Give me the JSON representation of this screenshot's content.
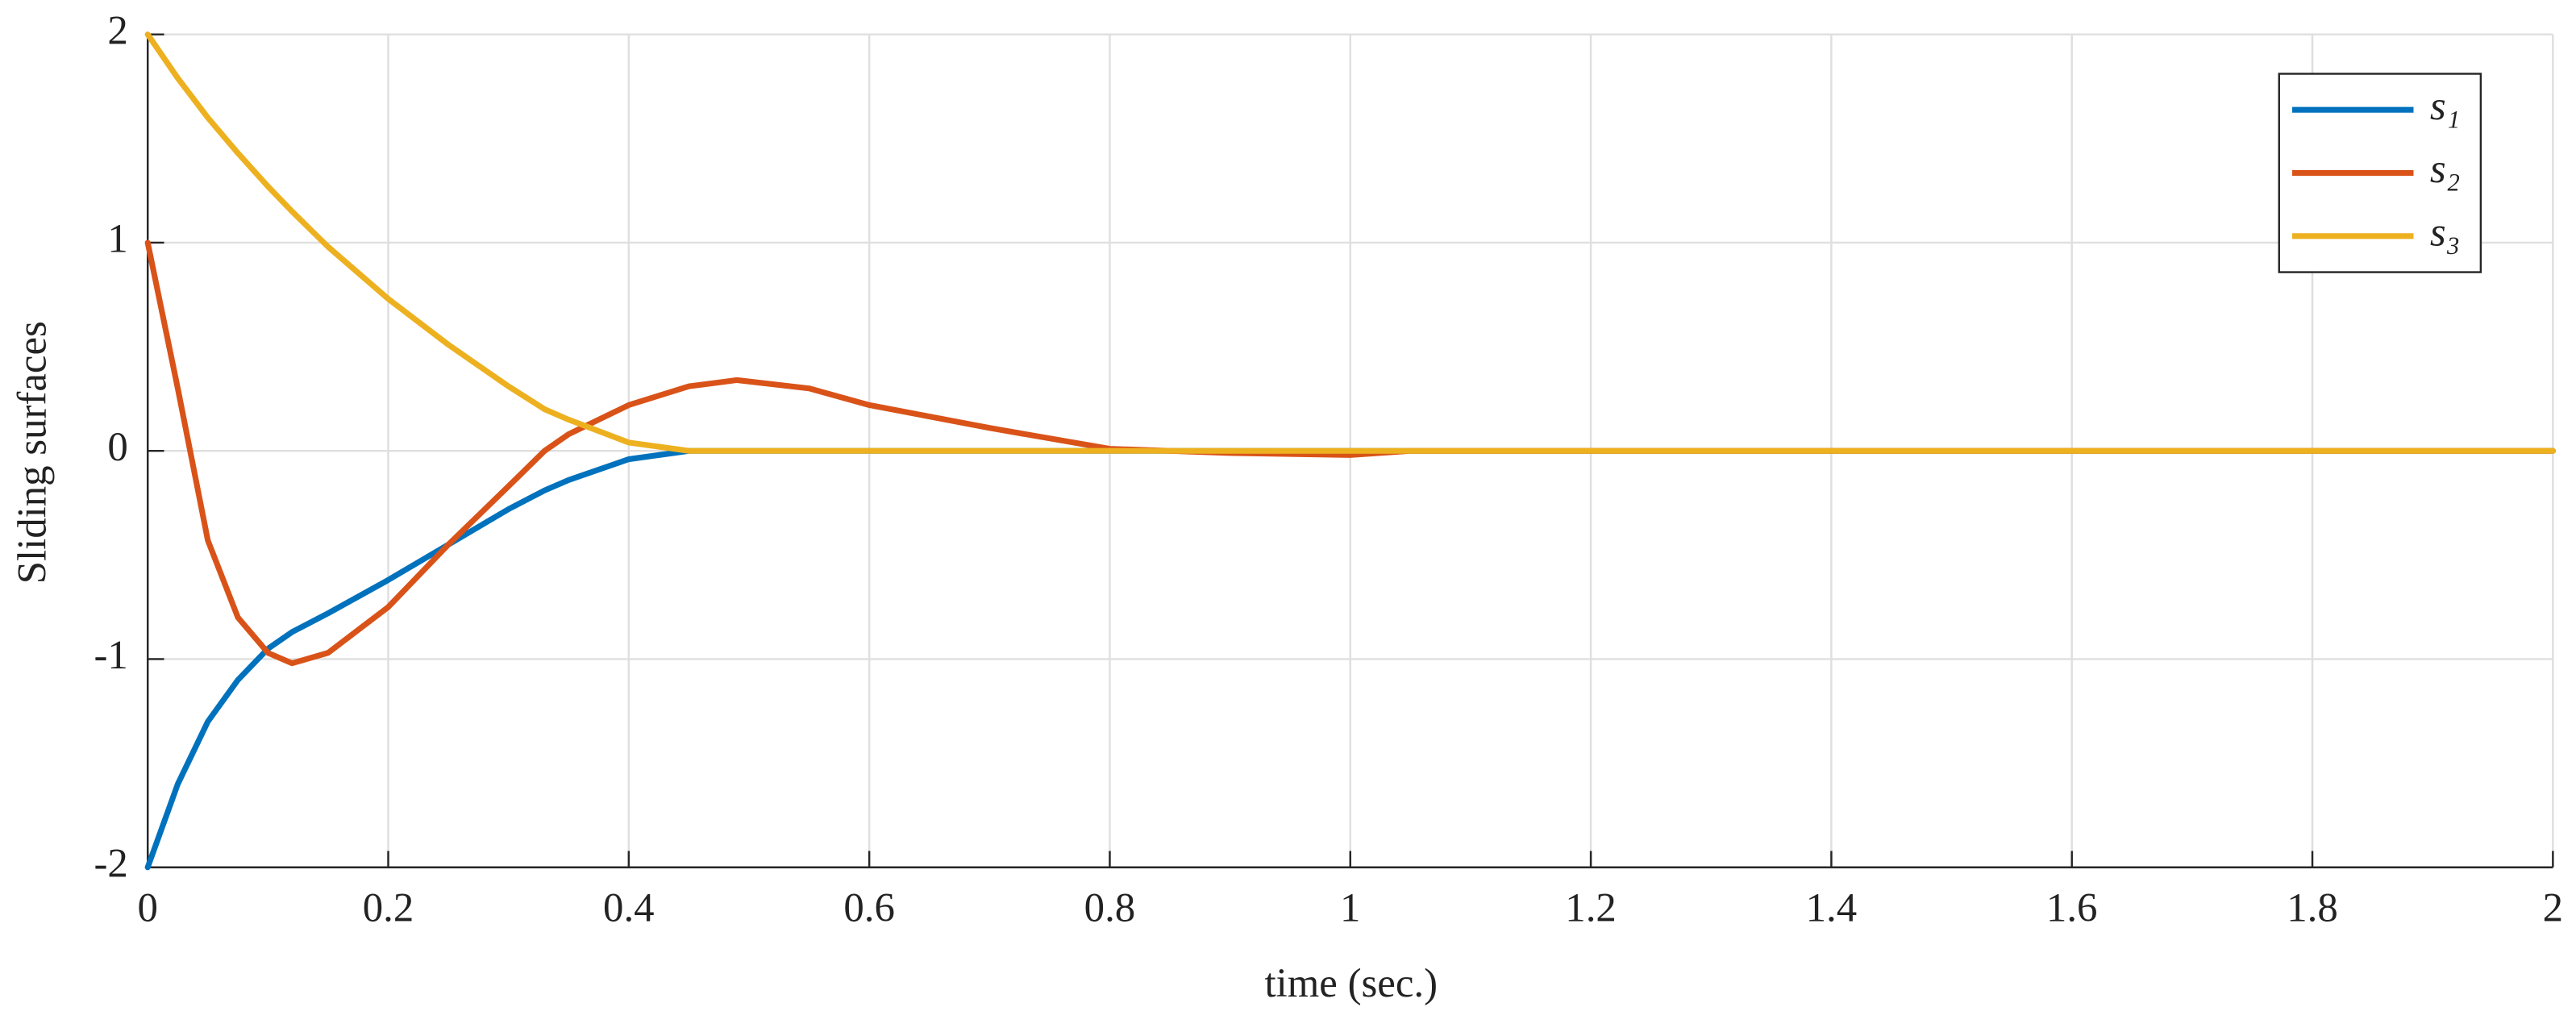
{
  "chart_data": {
    "type": "line",
    "xlabel": "time (sec.)",
    "ylabel": "Sliding surfaces",
    "x": [
      0,
      0.025,
      0.05,
      0.075,
      0.1,
      0.12,
      0.15,
      0.2,
      0.25,
      0.3,
      0.33,
      0.35,
      0.4,
      0.45,
      0.49,
      0.55,
      0.6,
      0.7,
      0.8,
      0.9,
      1,
      1.05,
      1.2,
      1.5,
      2
    ],
    "series": [
      {
        "name": "s₁",
        "color": "#0072BD",
        "values": [
          -2,
          -1.6,
          -1.3,
          -1.1,
          -0.95,
          -0.87,
          -0.78,
          -0.62,
          -0.45,
          -0.28,
          -0.19,
          -0.14,
          -0.04,
          0,
          0,
          0,
          0,
          0,
          0,
          0,
          0,
          0,
          0,
          0,
          0
        ]
      },
      {
        "name": "s₂",
        "color": "#D95319",
        "values": [
          1,
          0.3,
          -0.43,
          -0.8,
          -0.97,
          -1.02,
          -0.97,
          -0.75,
          -0.45,
          -0.17,
          0,
          0.08,
          0.22,
          0.31,
          0.34,
          0.3,
          0.22,
          0.11,
          0.01,
          -0.01,
          -0.02,
          0,
          0,
          0,
          0
        ]
      },
      {
        "name": "s₃",
        "color": "#EDB120",
        "values": [
          2,
          1.79,
          1.6,
          1.43,
          1.27,
          1.15,
          0.98,
          0.73,
          0.51,
          0.31,
          0.2,
          0.15,
          0.04,
          0,
          0,
          0,
          0,
          0,
          0,
          0,
          0,
          0,
          0,
          0,
          0
        ]
      }
    ],
    "xlim": [
      0,
      2
    ],
    "xticks": [
      0,
      0.2,
      0.4,
      0.6,
      0.8,
      1,
      1.2,
      1.4,
      1.6,
      1.8,
      2
    ],
    "ylim": [
      -2,
      2
    ],
    "yticks": [
      -2,
      -1,
      0,
      1,
      2
    ],
    "grid": true,
    "legend": "top-right"
  }
}
